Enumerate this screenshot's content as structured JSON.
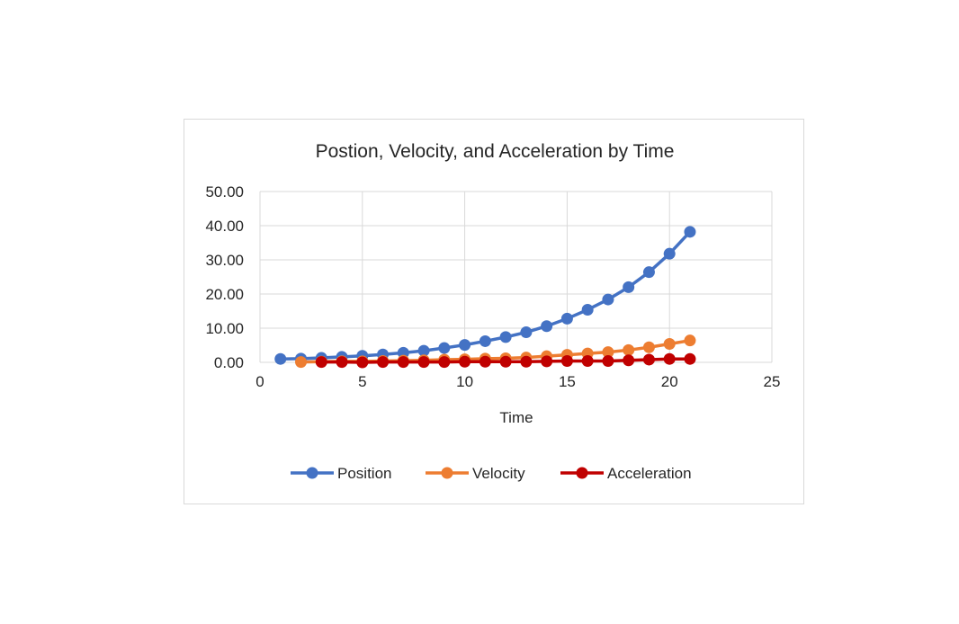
{
  "chart_data": {
    "type": "scatter",
    "title": "Postion, Velocity, and Acceleration by Time",
    "xlabel": "Time",
    "ylabel": "",
    "xlim": [
      0,
      25
    ],
    "ylim": [
      0,
      50
    ],
    "x_ticks": [
      "0",
      "5",
      "10",
      "15",
      "20",
      "25"
    ],
    "y_ticks": [
      "0.00",
      "10.00",
      "20.00",
      "30.00",
      "40.00",
      "50.00"
    ],
    "grid": true,
    "legend_position": "bottom",
    "series": [
      {
        "name": "Position",
        "color": "#4472C4",
        "x": [
          1,
          2,
          3,
          4,
          5,
          6,
          7,
          8,
          9,
          10,
          11,
          12,
          13,
          14,
          15,
          16,
          17,
          18,
          19,
          20,
          21
        ],
        "y": [
          1.0,
          1.1,
          1.3,
          1.6,
          1.9,
          2.3,
          2.8,
          3.4,
          4.2,
          5.1,
          6.2,
          7.4,
          8.8,
          10.6,
          12.8,
          15.4,
          18.4,
          22.0,
          26.4,
          31.8,
          38.2
        ]
      },
      {
        "name": "Velocity",
        "color": "#ED7D31",
        "x": [
          2,
          3,
          4,
          5,
          6,
          7,
          8,
          9,
          10,
          11,
          12,
          13,
          14,
          15,
          16,
          17,
          18,
          19,
          20,
          21
        ],
        "y": [
          0.1,
          0.2,
          0.3,
          0.3,
          0.4,
          0.5,
          0.6,
          0.8,
          0.9,
          1.1,
          1.2,
          1.4,
          1.8,
          2.2,
          2.6,
          3.0,
          3.6,
          4.4,
          5.4,
          6.4
        ]
      },
      {
        "name": "Acceleration",
        "color": "#C00000",
        "x": [
          3,
          4,
          5,
          6,
          7,
          8,
          9,
          10,
          11,
          12,
          13,
          14,
          15,
          16,
          17,
          18,
          19,
          20,
          21
        ],
        "y": [
          0.1,
          0.1,
          0.0,
          0.1,
          0.1,
          0.1,
          0.1,
          0.2,
          0.2,
          0.2,
          0.2,
          0.3,
          0.4,
          0.4,
          0.4,
          0.6,
          0.8,
          1.0,
          1.0
        ]
      }
    ]
  }
}
